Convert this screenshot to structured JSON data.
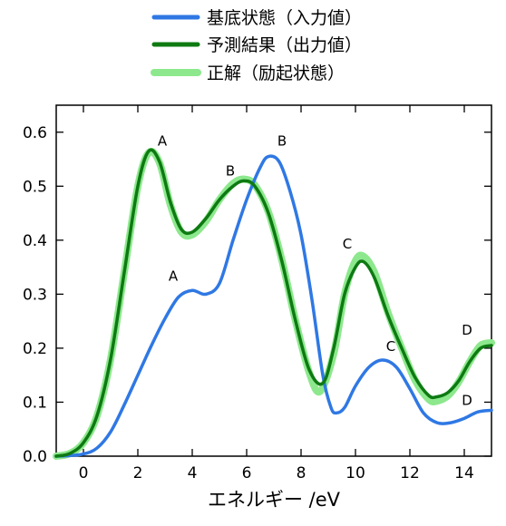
{
  "chart_data": {
    "type": "line",
    "xlabel": "エネルギー /eV",
    "ylabel": "",
    "xlim": [
      -1,
      15
    ],
    "ylim": [
      0,
      0.65
    ],
    "xticks": [
      0,
      2,
      4,
      6,
      8,
      10,
      12,
      14
    ],
    "yticks": [
      0.0,
      0.1,
      0.2,
      0.3,
      0.4,
      0.5,
      0.6
    ],
    "xtick_labels": [
      "0",
      "2",
      "4",
      "6",
      "8",
      "10",
      "12",
      "14"
    ],
    "ytick_labels": [
      "0.0",
      "0.1",
      "0.2",
      "0.3",
      "0.4",
      "0.5",
      "0.6"
    ],
    "grid": false,
    "legend_position": "top-center",
    "series": [
      {
        "name": "基底状態（入力値）",
        "color": "#2f78e4",
        "points": [
          [
            -1.0,
            0.0
          ],
          [
            -0.5,
            0.001
          ],
          [
            0.0,
            0.004
          ],
          [
            0.5,
            0.015
          ],
          [
            1.0,
            0.045
          ],
          [
            1.5,
            0.095
          ],
          [
            2.0,
            0.15
          ],
          [
            2.5,
            0.205
          ],
          [
            3.0,
            0.255
          ],
          [
            3.5,
            0.295
          ],
          [
            4.0,
            0.307
          ],
          [
            4.5,
            0.3
          ],
          [
            5.0,
            0.32
          ],
          [
            5.5,
            0.4
          ],
          [
            6.0,
            0.475
          ],
          [
            6.5,
            0.535
          ],
          [
            6.8,
            0.555
          ],
          [
            7.2,
            0.545
          ],
          [
            7.6,
            0.49
          ],
          [
            8.0,
            0.41
          ],
          [
            8.4,
            0.29
          ],
          [
            8.8,
            0.15
          ],
          [
            9.1,
            0.09
          ],
          [
            9.3,
            0.08
          ],
          [
            9.6,
            0.09
          ],
          [
            10.0,
            0.13
          ],
          [
            10.5,
            0.165
          ],
          [
            11.0,
            0.178
          ],
          [
            11.5,
            0.165
          ],
          [
            12.0,
            0.125
          ],
          [
            12.5,
            0.08
          ],
          [
            13.0,
            0.062
          ],
          [
            13.5,
            0.062
          ],
          [
            14.0,
            0.07
          ],
          [
            14.5,
            0.082
          ],
          [
            15.0,
            0.085
          ]
        ]
      },
      {
        "name": "予測結果（出力値）",
        "color": "#0e7a12",
        "points": [
          [
            -1.0,
            0.0
          ],
          [
            -0.5,
            0.005
          ],
          [
            0.0,
            0.025
          ],
          [
            0.5,
            0.075
          ],
          [
            1.0,
            0.18
          ],
          [
            1.5,
            0.34
          ],
          [
            2.0,
            0.5
          ],
          [
            2.4,
            0.565
          ],
          [
            2.8,
            0.545
          ],
          [
            3.2,
            0.47
          ],
          [
            3.6,
            0.42
          ],
          [
            4.0,
            0.415
          ],
          [
            4.5,
            0.44
          ],
          [
            5.0,
            0.475
          ],
          [
            5.5,
            0.5
          ],
          [
            5.9,
            0.51
          ],
          [
            6.3,
            0.5
          ],
          [
            6.8,
            0.45
          ],
          [
            7.3,
            0.36
          ],
          [
            7.8,
            0.25
          ],
          [
            8.3,
            0.16
          ],
          [
            8.8,
            0.135
          ],
          [
            9.2,
            0.2
          ],
          [
            9.6,
            0.3
          ],
          [
            10.0,
            0.35
          ],
          [
            10.3,
            0.36
          ],
          [
            10.7,
            0.33
          ],
          [
            11.2,
            0.26
          ],
          [
            11.7,
            0.2
          ],
          [
            12.2,
            0.145
          ],
          [
            12.7,
            0.112
          ],
          [
            13.0,
            0.11
          ],
          [
            13.4,
            0.118
          ],
          [
            13.8,
            0.14
          ],
          [
            14.2,
            0.175
          ],
          [
            14.6,
            0.2
          ],
          [
            15.0,
            0.205
          ]
        ]
      },
      {
        "name": "正解（励起状態）",
        "color": "#8de88d",
        "points": [
          [
            -1.0,
            0.0
          ],
          [
            -0.5,
            0.005
          ],
          [
            0.0,
            0.025
          ],
          [
            0.5,
            0.075
          ],
          [
            1.0,
            0.18
          ],
          [
            1.5,
            0.34
          ],
          [
            2.0,
            0.5
          ],
          [
            2.4,
            0.562
          ],
          [
            2.8,
            0.543
          ],
          [
            3.2,
            0.465
          ],
          [
            3.6,
            0.415
          ],
          [
            4.0,
            0.41
          ],
          [
            4.5,
            0.435
          ],
          [
            5.0,
            0.475
          ],
          [
            5.5,
            0.505
          ],
          [
            5.9,
            0.513
          ],
          [
            6.3,
            0.502
          ],
          [
            6.8,
            0.452
          ],
          [
            7.3,
            0.362
          ],
          [
            7.8,
            0.25
          ],
          [
            8.3,
            0.155
          ],
          [
            8.7,
            0.12
          ],
          [
            9.2,
            0.19
          ],
          [
            9.6,
            0.3
          ],
          [
            10.0,
            0.362
          ],
          [
            10.3,
            0.37
          ],
          [
            10.7,
            0.34
          ],
          [
            11.2,
            0.265
          ],
          [
            11.7,
            0.2
          ],
          [
            12.2,
            0.14
          ],
          [
            12.7,
            0.105
          ],
          [
            13.0,
            0.102
          ],
          [
            13.4,
            0.112
          ],
          [
            13.8,
            0.138
          ],
          [
            14.2,
            0.175
          ],
          [
            14.6,
            0.205
          ],
          [
            15.0,
            0.21
          ]
        ]
      }
    ],
    "annotations": [
      {
        "text": "A",
        "x": 2.9,
        "y": 0.575
      },
      {
        "text": "B",
        "x": 7.3,
        "y": 0.575
      },
      {
        "text": "B",
        "x": 5.4,
        "y": 0.52
      },
      {
        "text": "A",
        "x": 3.3,
        "y": 0.325
      },
      {
        "text": "C",
        "x": 9.7,
        "y": 0.385
      },
      {
        "text": "C",
        "x": 11.3,
        "y": 0.195
      },
      {
        "text": "D",
        "x": 14.1,
        "y": 0.225
      },
      {
        "text": "D",
        "x": 14.1,
        "y": 0.095
      }
    ]
  }
}
